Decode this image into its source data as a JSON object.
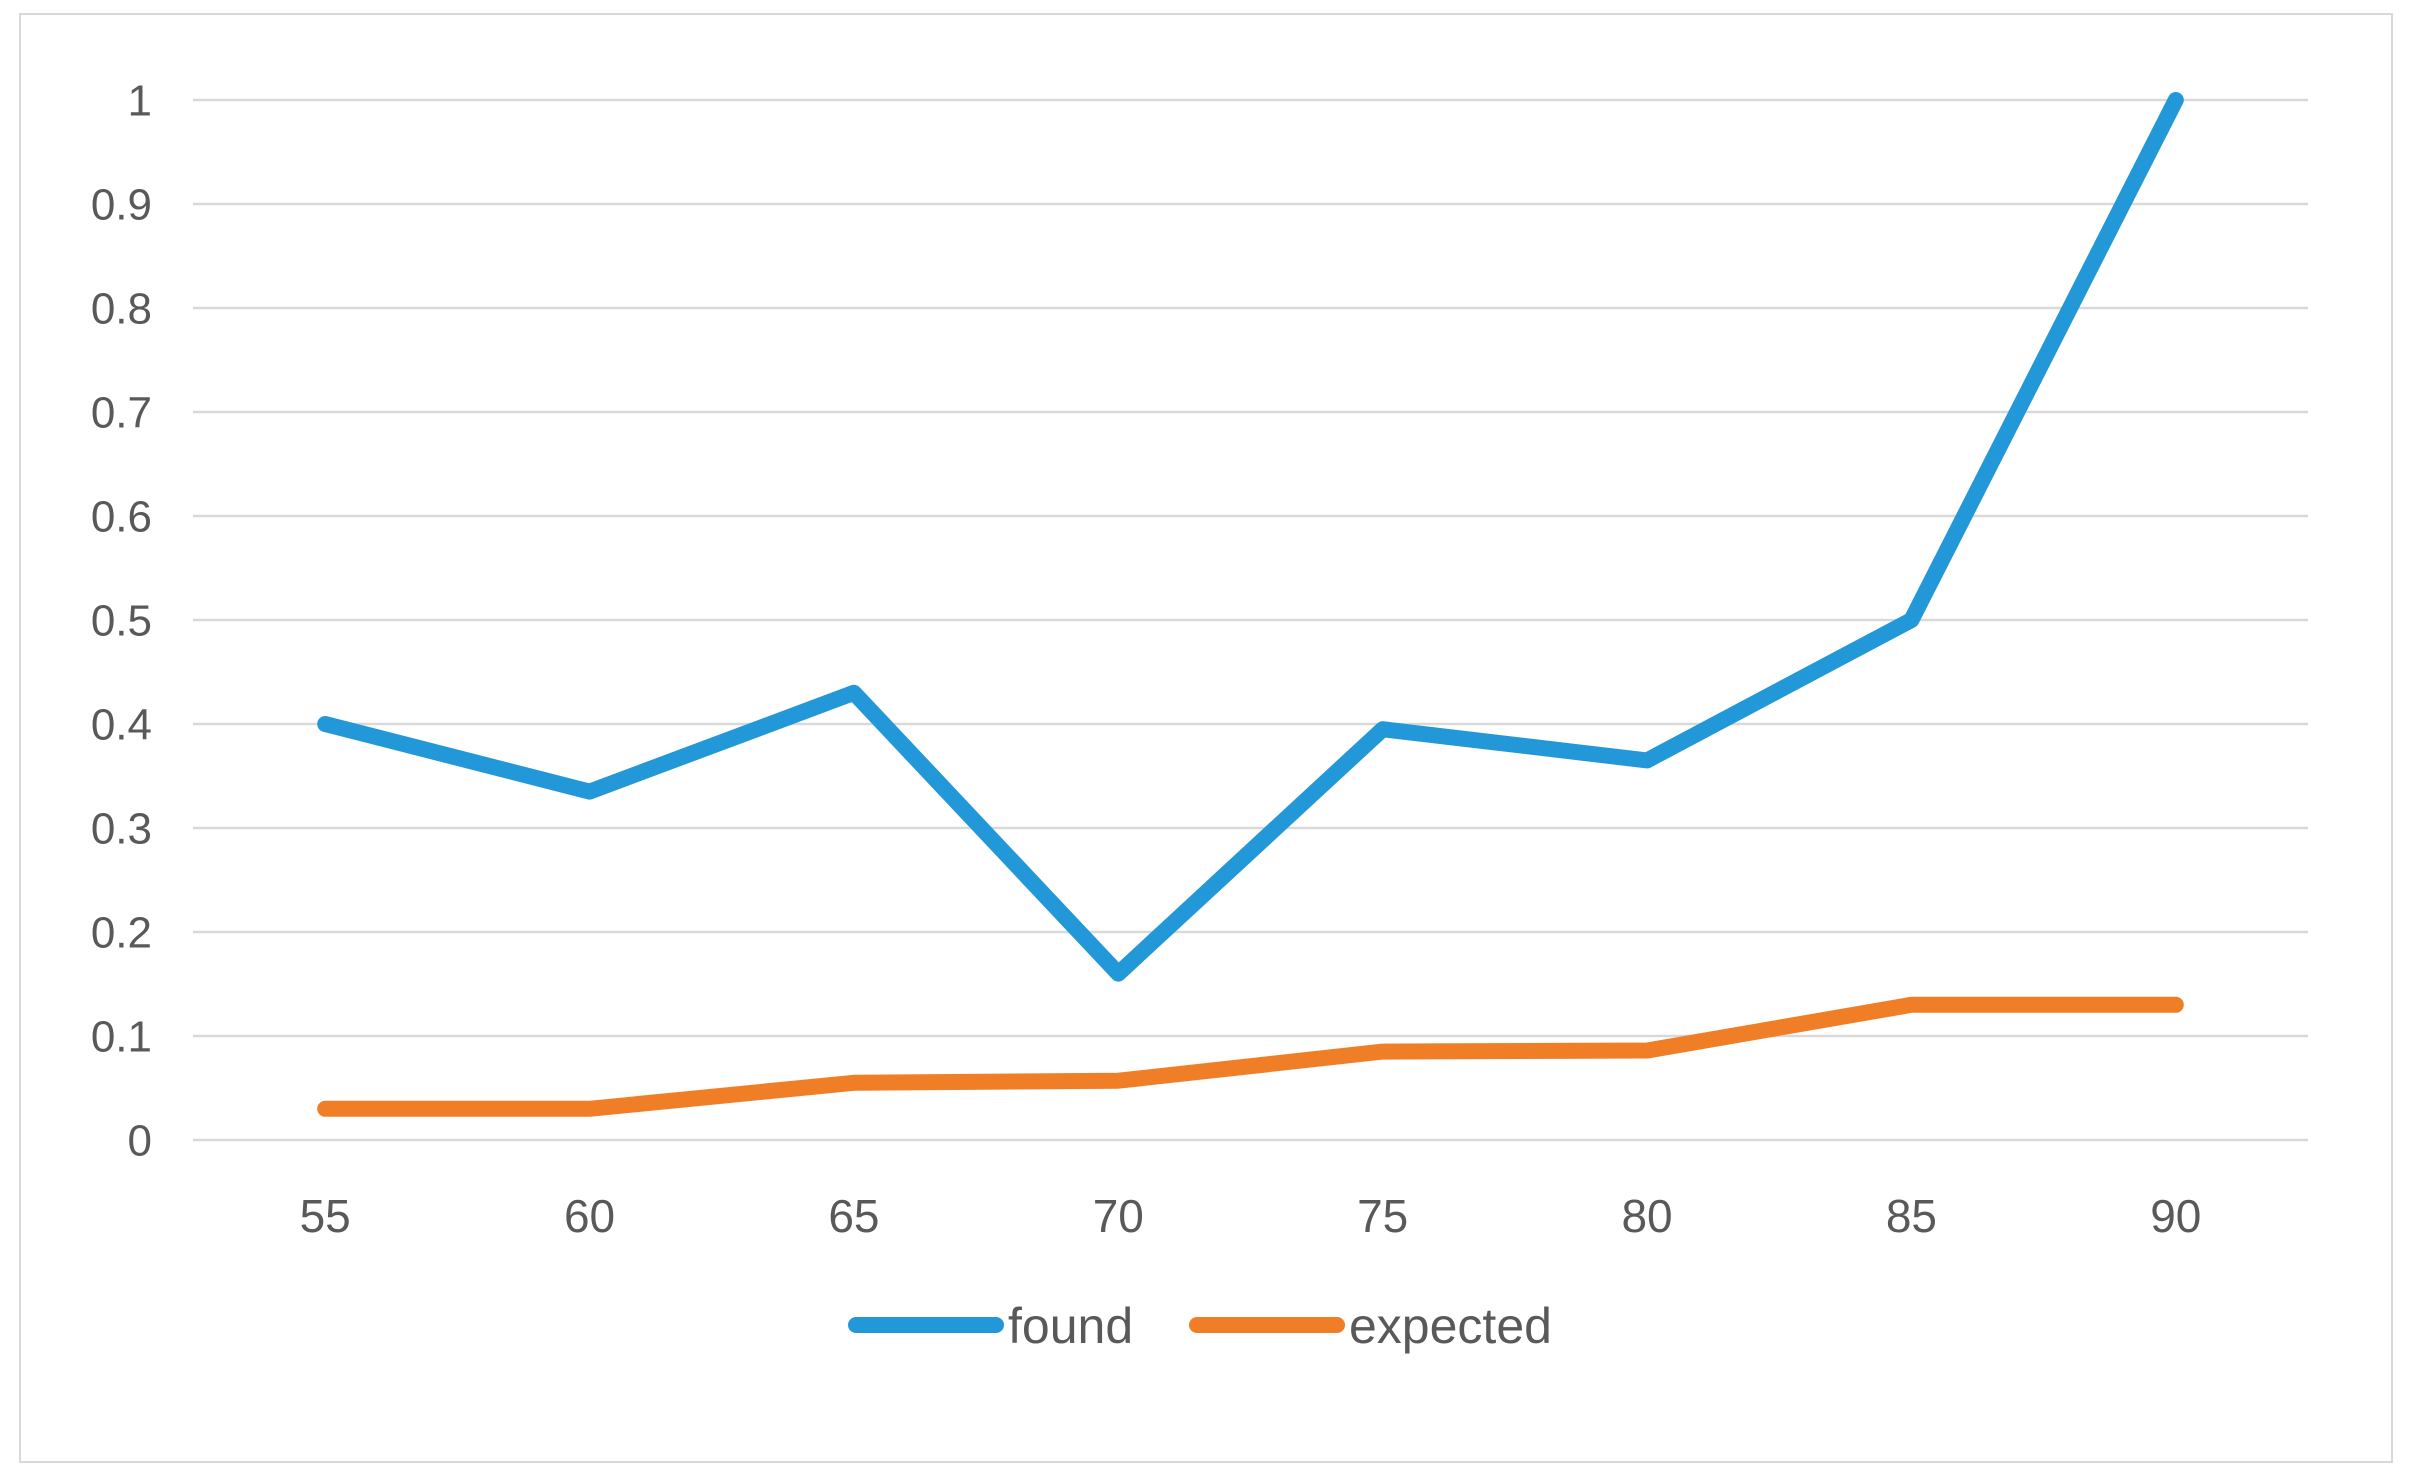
{
  "chart": {
    "background_color": "#ffffff",
    "border_color": "#d9d9d9",
    "gridline_color": "#d9d9d9",
    "axis_label_color": "#595959",
    "y_axis": {
      "min": 0,
      "max": 1,
      "step": 0.1,
      "tick_labels_top_to_bottom": [
        "1",
        "0.9",
        "0.8",
        "0.7",
        "0.6",
        "0.5",
        "0.4",
        "0.3",
        "0.2",
        "0.1",
        "0"
      ]
    },
    "x_axis": {
      "tick_labels": [
        "55",
        "60",
        "65",
        "70",
        "75",
        "80",
        "85",
        "90"
      ]
    },
    "legend": {
      "position": "bottom-center",
      "items": [
        {
          "label": "found",
          "color": "#2398d8"
        },
        {
          "label": "expected",
          "color": "#f07e27"
        }
      ]
    }
  },
  "chart_data": {
    "type": "line",
    "title": "",
    "xlabel": "",
    "ylabel": "",
    "x": [
      55,
      60,
      65,
      70,
      75,
      80,
      85,
      90
    ],
    "series": [
      {
        "name": "found",
        "color": "#2398d8",
        "values": [
          0.4,
          0.335,
          0.43,
          0.16,
          0.395,
          0.365,
          0.5,
          1.0
        ]
      },
      {
        "name": "expected",
        "color": "#f07e27",
        "values": [
          0.03,
          0.03,
          0.055,
          0.057,
          0.085,
          0.086,
          0.13,
          0.13
        ]
      }
    ],
    "ylim": [
      0,
      1
    ],
    "grid": "horizontal",
    "legend_position": "bottom"
  }
}
